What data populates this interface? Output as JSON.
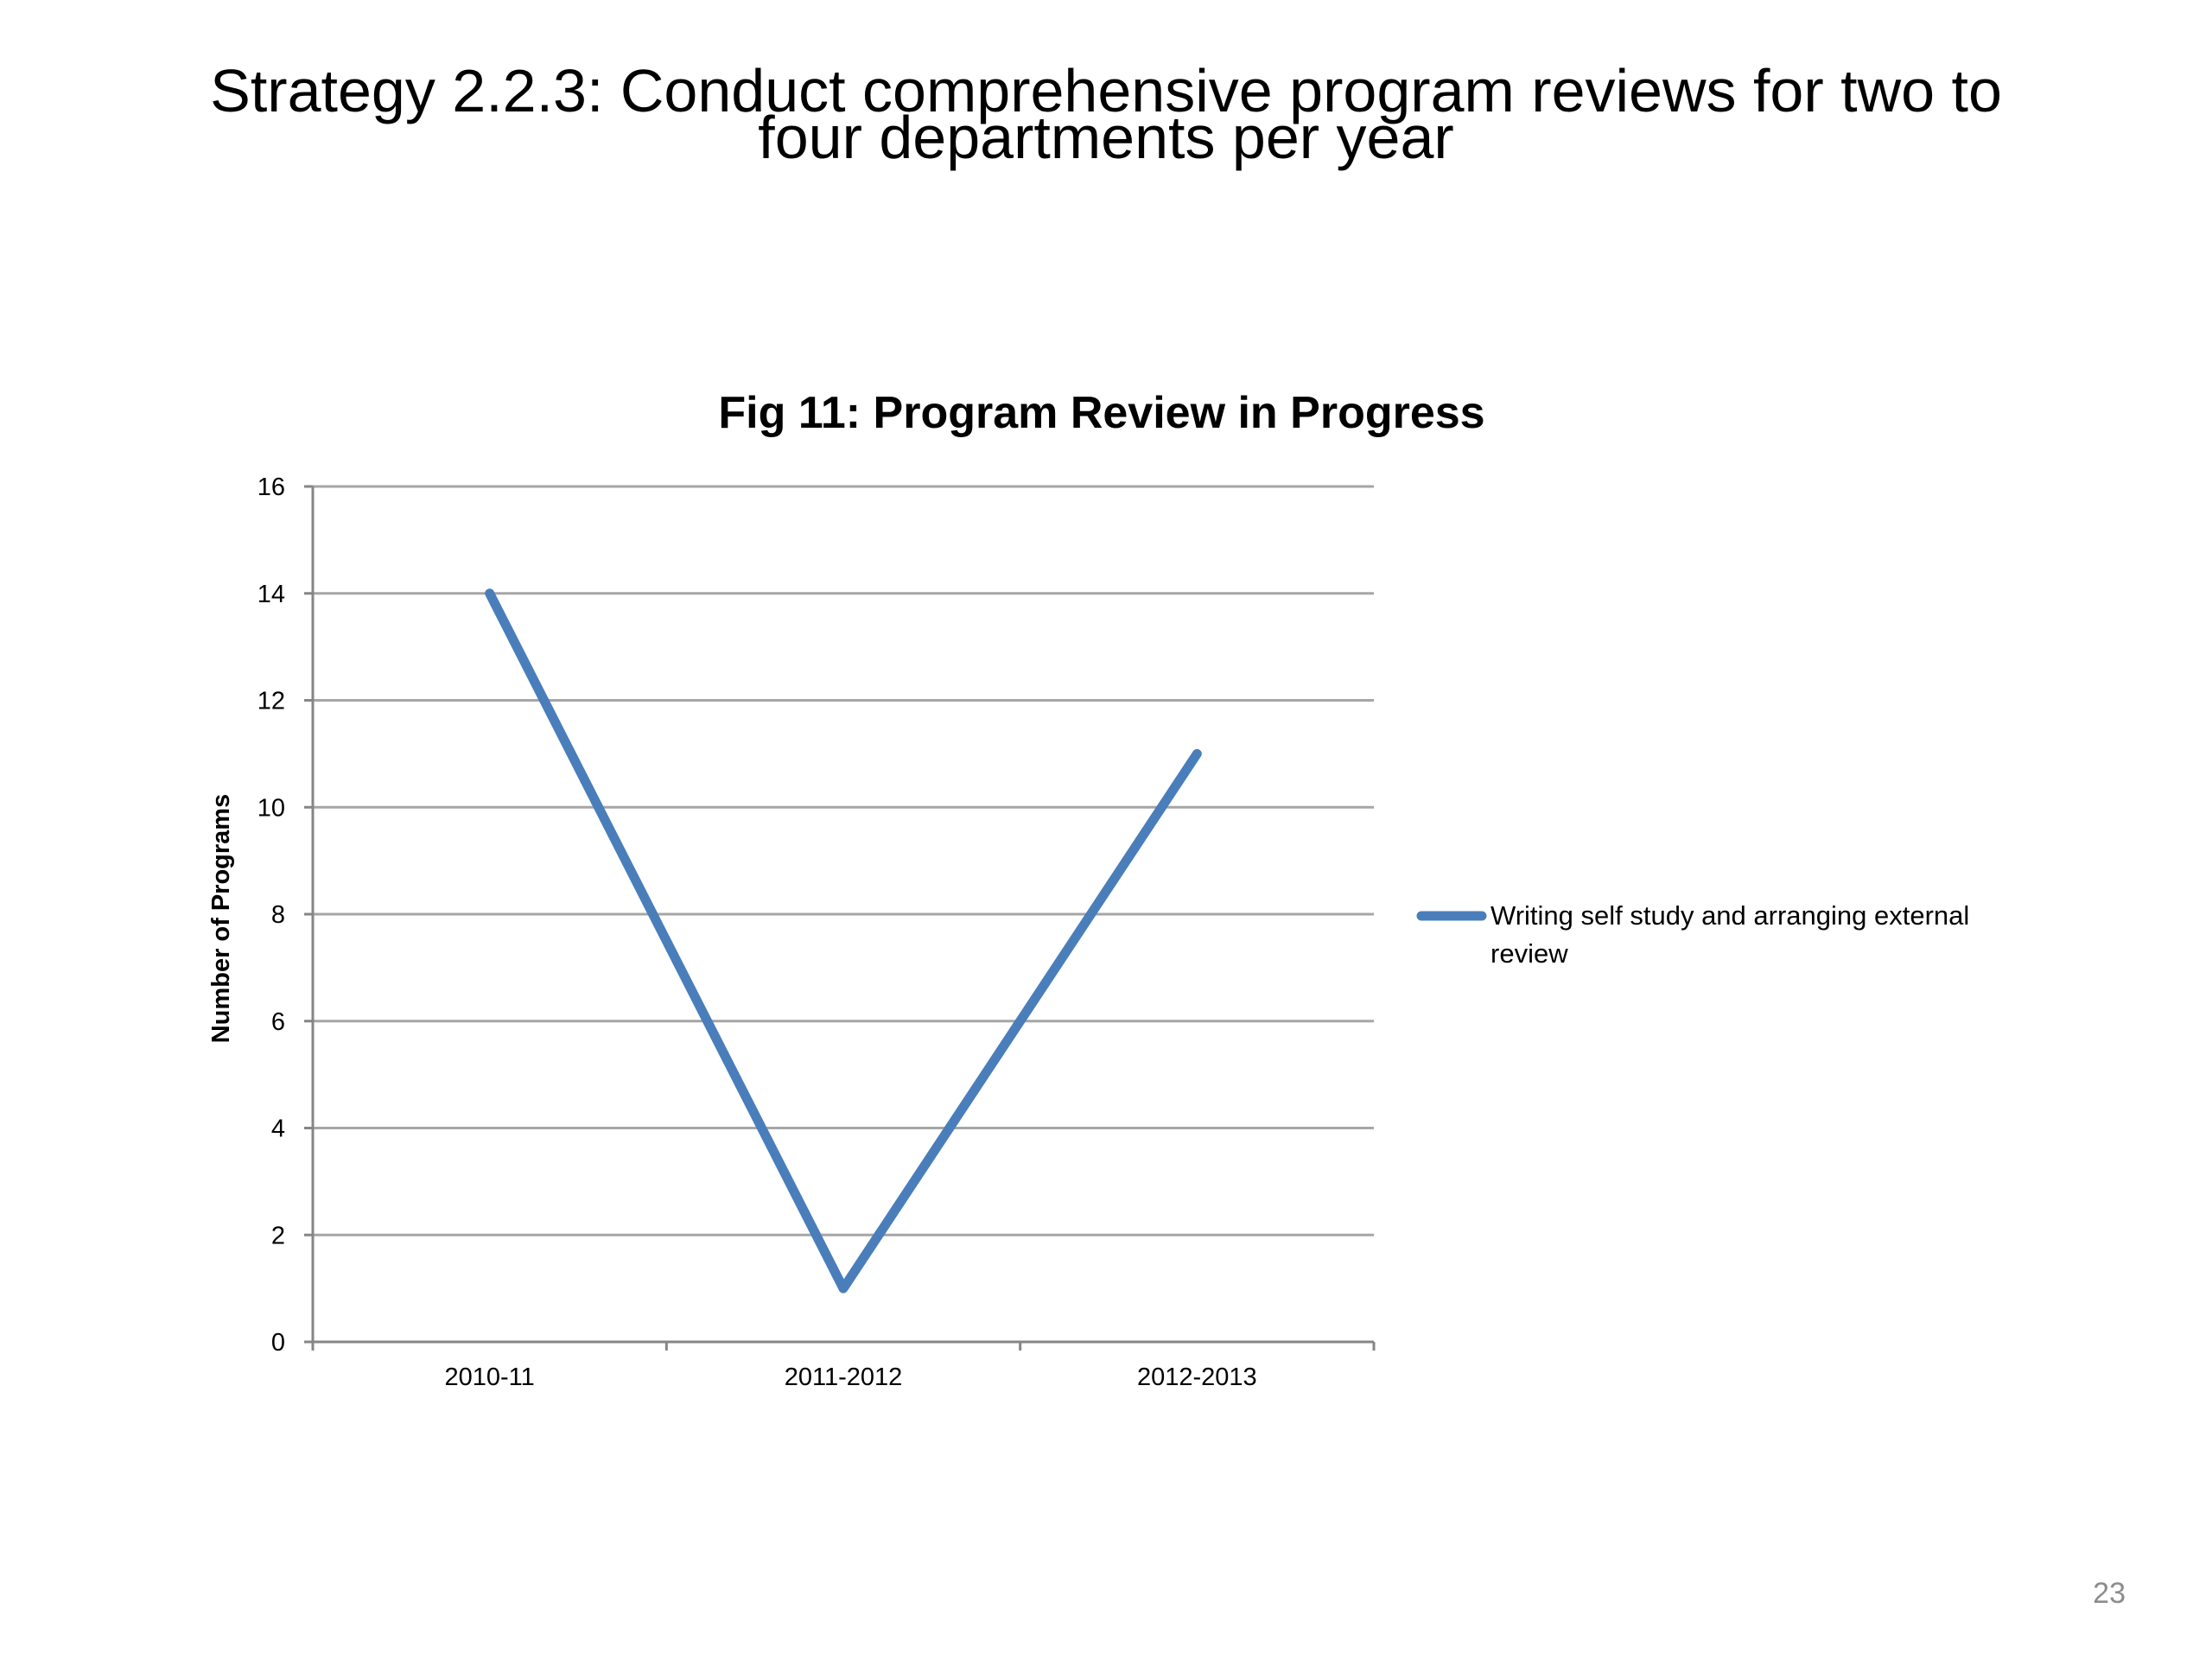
{
  "slide": {
    "title_line1": "Strategy 2.2.3:  Conduct comprehensive program reviews for two to",
    "title_line2": "four departments per year",
    "page_number": "23"
  },
  "colors": {
    "series": "#4a7ebb",
    "gridline": "#a6a6a6",
    "axis": "#868686",
    "text": "#000000",
    "page_number": "#8c8c8c"
  },
  "chart_data": {
    "type": "line",
    "title": "Fig 11: Program Review in Progress",
    "xlabel": "",
    "ylabel": "Number of Programs",
    "categories": [
      "2010-11",
      "2011-2012",
      "2012-2013"
    ],
    "ylim": [
      0,
      16
    ],
    "yticks": [
      0,
      2,
      4,
      6,
      8,
      10,
      12,
      14,
      16
    ],
    "grid": true,
    "legend": "right",
    "series": [
      {
        "name": "Writing self study and arranging external review",
        "legend_lines": [
          "Writing self study and arranging external",
          "review"
        ],
        "values": [
          14,
          1,
          11
        ]
      }
    ]
  }
}
